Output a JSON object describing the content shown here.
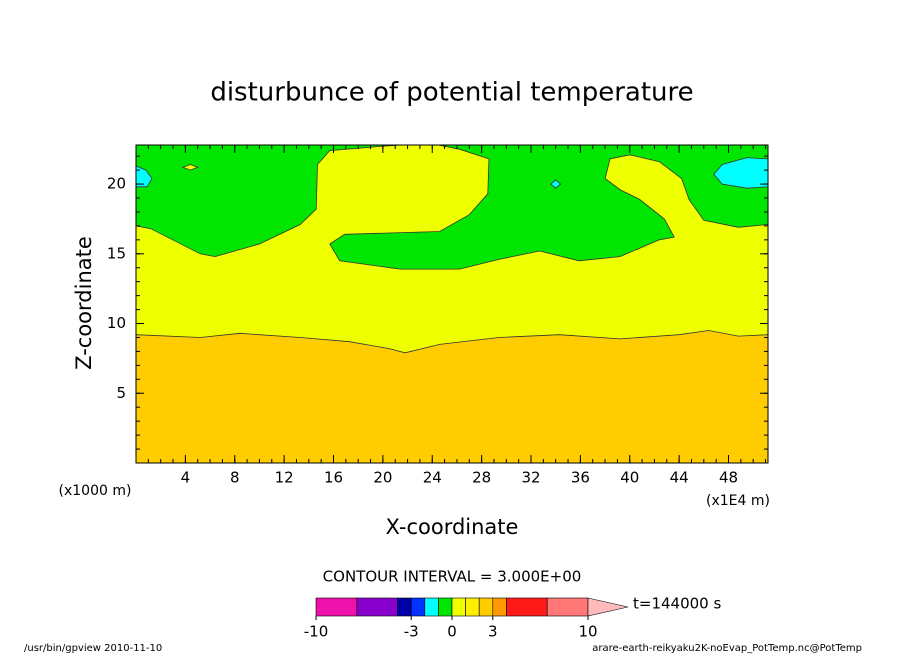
{
  "chart_data": {
    "type": "contour",
    "title": "disturbunce of potential temperature",
    "x_label": "X-coordinate",
    "y_label": "Z-coordinate",
    "x_unit_label": "(x1000 m)",
    "x_scale_label": "(x1E4 m)",
    "xlim": [
      0,
      51.2
    ],
    "ylim": [
      0,
      22.8
    ],
    "xticks": [
      4,
      8,
      12,
      16,
      20,
      24,
      28,
      32,
      36,
      40,
      44,
      48
    ],
    "yticks": [
      5,
      10,
      15,
      20
    ],
    "minor_xstep": 1,
    "minor_ystep": 1,
    "regions": [
      {
        "range": [
          -1,
          0
        ],
        "x": [
          0,
          51.2,
          51.2,
          0
        ],
        "z": [
          0,
          0,
          22.8,
          22.8
        ]
      },
      {
        "range": [
          0,
          1
        ],
        "x": [
          0,
          1.2,
          5.2,
          6.4,
          10,
          13.3,
          14.6,
          14.7,
          15.7,
          19.8,
          21.5,
          24.5,
          26.2,
          28.6,
          28.5,
          27.0,
          24.6,
          16.9,
          15.7,
          16.5,
          21.4,
          26.2,
          29.4,
          32.7,
          35.9,
          39.2,
          42.4,
          43.6,
          42.8,
          40.8,
          39.2,
          38.0,
          38.4,
          40,
          42.4,
          44.2,
          44.8,
          46.0,
          48.8,
          51.2,
          51.2,
          0
        ],
        "z": [
          17.0,
          16.8,
          15.0,
          14.8,
          15.7,
          17.1,
          18.2,
          21.4,
          22.4,
          22.7,
          22.8,
          22.8,
          22.5,
          21.8,
          19.3,
          17.8,
          16.6,
          16.4,
          15.7,
          14.5,
          13.9,
          13.9,
          14.6,
          15.2,
          14.5,
          14.8,
          16.0,
          16.2,
          17.5,
          18.9,
          19.6,
          20.4,
          21.8,
          22.1,
          21.6,
          20.4,
          18.9,
          17.4,
          16.9,
          17.1,
          0,
          0
        ]
      },
      {
        "range": [
          2,
          3
        ],
        "x": [
          0,
          5.2,
          8.4,
          13.3,
          17.3,
          20.5,
          21.8,
          24.6,
          29.4,
          34.3,
          39.2,
          44,
          46.4,
          48.8,
          51.2,
          51.2,
          0
        ],
        "z": [
          9.2,
          9.0,
          9.3,
          9.0,
          8.7,
          8.2,
          7.9,
          8.5,
          9.0,
          9.2,
          8.9,
          9.2,
          9.5,
          9.1,
          9.2,
          0,
          0
        ]
      },
      {
        "range": [
          -2,
          -1
        ],
        "x": [
          0,
          0.8,
          1.3,
          0.9,
          0
        ],
        "z": [
          21.3,
          21.0,
          20.4,
          19.8,
          19.8
        ]
      },
      {
        "range": [
          -2,
          -1
        ],
        "x": [
          33.6,
          34.0,
          34.4,
          34.0
        ],
        "z": [
          20.0,
          20.3,
          20.0,
          19.7
        ]
      },
      {
        "range": [
          -2,
          -1
        ],
        "x": [
          51.2,
          49.5,
          47.5,
          46.8,
          47.5,
          49.5,
          51.2
        ],
        "z": [
          21.8,
          21.9,
          21.4,
          20.7,
          20.0,
          19.7,
          19.8
        ]
      },
      {
        "range": [
          0,
          1
        ],
        "x": [
          3.8,
          4.4,
          5.0,
          4.4
        ],
        "z": [
          21.2,
          21.4,
          21.2,
          21.0
        ]
      }
    ],
    "contour_interval_label": "CONTOUR INTERVAL = 3.000E+00",
    "colorbar": {
      "levels": [
        -10,
        -7,
        -4,
        -3,
        -2,
        -1,
        0,
        1,
        2,
        3,
        4,
        7,
        10
      ],
      "colors": [
        "#ee11aa",
        "#8800cc",
        "#0000aa",
        "#0033ff",
        "#00ffff",
        "#00e600",
        "#eeff00",
        "#ffee00",
        "#ffcc00",
        "#ff9900",
        "#ff1a1a",
        "#ff7777",
        "#ffbbbb"
      ],
      "ticks": [
        -10,
        -3,
        0,
        3,
        10
      ],
      "label": "t=144000 s"
    },
    "footer_left": "/usr/bin/gpview  2010-11-10",
    "footer_right": "arare-earth-reikyaku2K-noEvap_PotTemp.nc@PotTemp"
  }
}
